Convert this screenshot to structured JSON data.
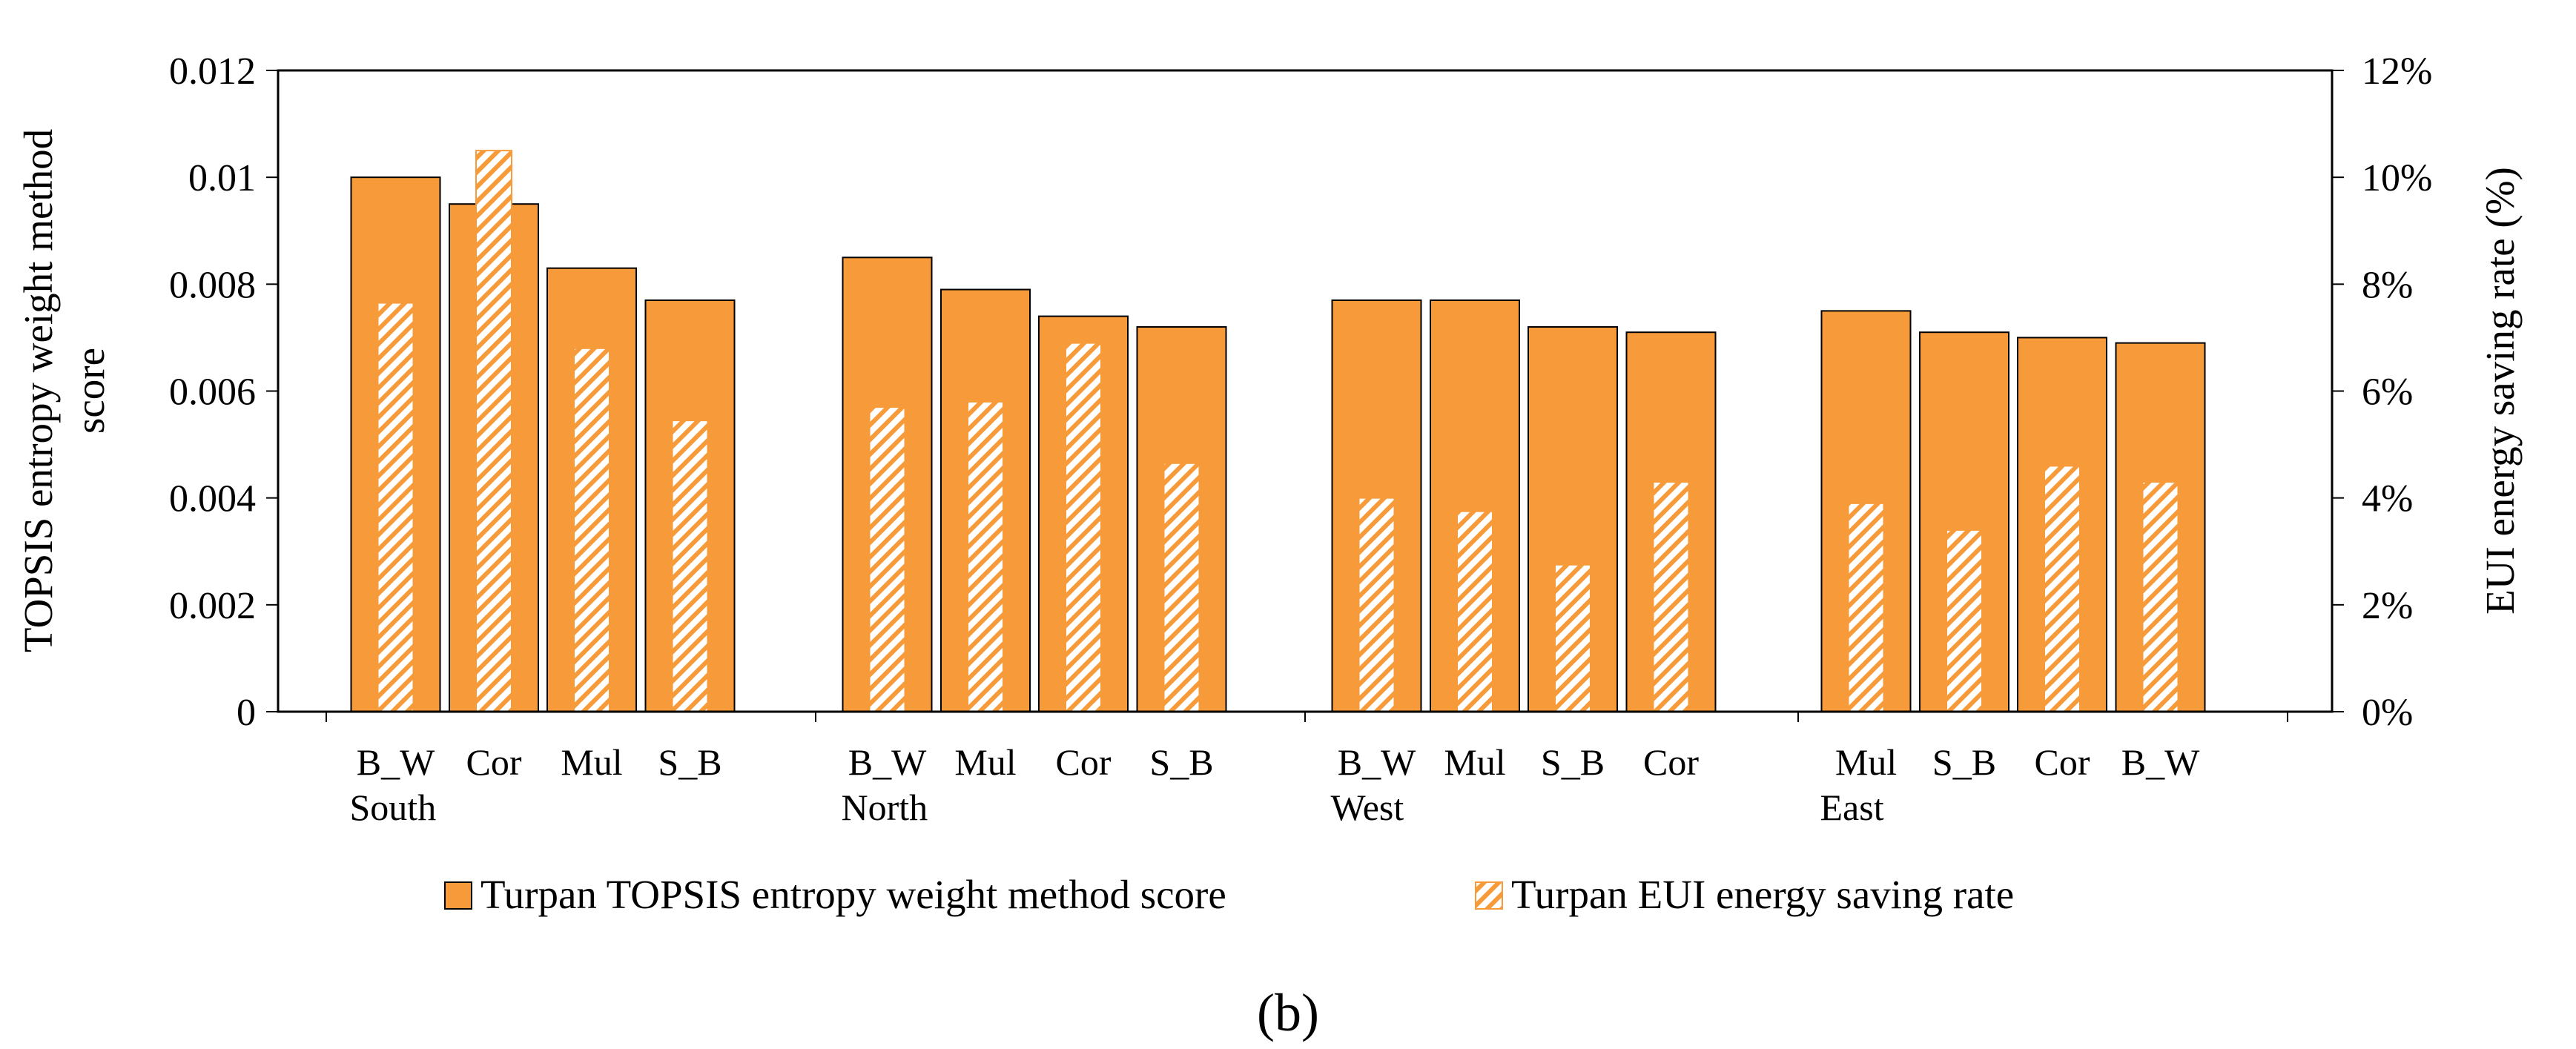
{
  "chart_data": {
    "type": "bar",
    "groups": [
      {
        "name": "South",
        "categories": [
          "B_W",
          "Cor",
          "Mul",
          "S_B"
        ]
      },
      {
        "name": "North",
        "categories": [
          "B_W",
          "Mul",
          "Cor",
          "S_B"
        ]
      },
      {
        "name": "West",
        "categories": [
          "B_W",
          "Mul",
          "S_B",
          "Cor"
        ]
      },
      {
        "name": "East",
        "categories": [
          "Mul",
          "S_B",
          "Cor",
          "B_W"
        ]
      }
    ],
    "series": [
      {
        "name": "Turpan TOPSIS entropy weight method score",
        "axis": "left",
        "color": "#F79B3A",
        "values": [
          [
            0.01,
            0.0095,
            0.0083,
            0.0077
          ],
          [
            0.0085,
            0.0079,
            0.0074,
            0.0072
          ],
          [
            0.0077,
            0.0077,
            0.0072,
            0.0071
          ],
          [
            0.0075,
            0.0071,
            0.007,
            0.0069
          ]
        ]
      },
      {
        "name": "Turpan EUI energy saving rate",
        "axis": "right",
        "color": "#F79B3A",
        "pattern": "diagonal-hatch",
        "values": [
          [
            7.65,
            10.5,
            6.8,
            5.45
          ],
          [
            5.7,
            5.8,
            6.9,
            4.65
          ],
          [
            4.0,
            3.75,
            2.75,
            4.3
          ],
          [
            3.9,
            3.4,
            4.6,
            4.3
          ]
        ]
      }
    ],
    "y_left": {
      "label": "TOPSIS entropy weight method score",
      "label_line1": "TOPSIS entropy weight method",
      "label_line2": "score",
      "ylim": [
        0,
        0.012
      ],
      "ticks": [
        "0",
        "0.002",
        "0.004",
        "0.006",
        "0.008",
        "0.01",
        "0.012"
      ]
    },
    "y_right": {
      "label": "EUI energy saving rate (%)",
      "ylim": [
        0,
        12
      ],
      "ticks": [
        "0%",
        "2%",
        "4%",
        "6%",
        "8%",
        "10%",
        "12%"
      ]
    },
    "legend": {
      "placement": "bottom",
      "items": [
        "Turpan TOPSIS entropy weight method score",
        "Turpan EUI energy saving rate"
      ]
    },
    "panel_label": "(b)",
    "grid": false
  }
}
